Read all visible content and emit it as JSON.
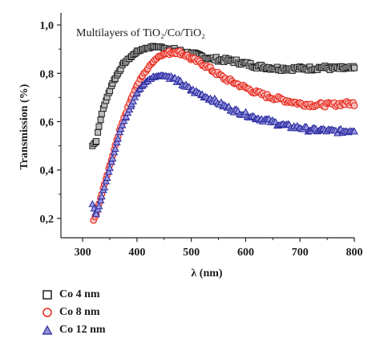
{
  "chart_data": {
    "type": "scatter",
    "annotation": "Multilayers of TiO₂/Co/TiO₂",
    "xlabel": "λ (nm)",
    "ylabel": "Transmission (%)",
    "xlim": [
      260,
      800
    ],
    "ylim": [
      0.12,
      1.05
    ],
    "x_ticks": [
      300,
      400,
      500,
      600,
      700,
      800
    ],
    "y_ticks": [
      0.2,
      0.4,
      0.6,
      0.8,
      1.0
    ],
    "y_tick_labels": [
      "0,2",
      "0,4",
      "0,6",
      "0,8",
      "1,0"
    ],
    "grid": false,
    "legend_position": "bottom-left",
    "series": [
      {
        "name": "Co 4 nm",
        "marker": "square",
        "color": "#222222",
        "x": [
          318,
          325,
          330,
          335,
          340,
          345,
          350,
          355,
          360,
          365,
          370,
          375,
          380,
          390,
          400,
          410,
          420,
          430,
          440,
          450,
          460,
          470,
          480,
          490,
          500,
          520,
          540,
          560,
          580,
          600,
          620,
          640,
          660,
          680,
          700,
          720,
          740,
          760,
          780,
          800
        ],
        "y": [
          0.5,
          0.52,
          0.58,
          0.63,
          0.67,
          0.7,
          0.73,
          0.76,
          0.78,
          0.8,
          0.82,
          0.84,
          0.85,
          0.87,
          0.89,
          0.9,
          0.905,
          0.91,
          0.91,
          0.905,
          0.9,
          0.895,
          0.89,
          0.885,
          0.88,
          0.87,
          0.86,
          0.855,
          0.85,
          0.84,
          0.83,
          0.825,
          0.82,
          0.82,
          0.82,
          0.82,
          0.825,
          0.82,
          0.82,
          0.82
        ]
      },
      {
        "name": "Co 8 nm",
        "marker": "circle",
        "color": "#e8261a",
        "x": [
          320,
          325,
          330,
          335,
          340,
          345,
          350,
          355,
          360,
          365,
          370,
          380,
          390,
          400,
          410,
          420,
          430,
          440,
          450,
          460,
          470,
          480,
          490,
          500,
          520,
          540,
          560,
          580,
          600,
          620,
          640,
          660,
          680,
          700,
          720,
          740,
          760,
          780,
          800
        ],
        "y": [
          0.19,
          0.22,
          0.26,
          0.3,
          0.34,
          0.38,
          0.42,
          0.46,
          0.5,
          0.54,
          0.58,
          0.64,
          0.7,
          0.75,
          0.79,
          0.82,
          0.85,
          0.87,
          0.88,
          0.885,
          0.89,
          0.885,
          0.875,
          0.86,
          0.84,
          0.81,
          0.78,
          0.76,
          0.74,
          0.72,
          0.705,
          0.695,
          0.685,
          0.675,
          0.67,
          0.67,
          0.67,
          0.675,
          0.675
        ]
      },
      {
        "name": "Co 12 nm",
        "marker": "triangle",
        "color": "#2b2ba0",
        "x": [
          318,
          325,
          330,
          335,
          340,
          345,
          350,
          355,
          360,
          365,
          370,
          380,
          390,
          400,
          410,
          420,
          430,
          440,
          450,
          460,
          470,
          480,
          490,
          500,
          520,
          540,
          560,
          580,
          600,
          620,
          640,
          660,
          680,
          700,
          720,
          740,
          760,
          780,
          800
        ],
        "y": [
          0.26,
          0.22,
          0.25,
          0.29,
          0.33,
          0.37,
          0.41,
          0.45,
          0.49,
          0.53,
          0.57,
          0.62,
          0.67,
          0.72,
          0.75,
          0.77,
          0.785,
          0.79,
          0.79,
          0.785,
          0.775,
          0.76,
          0.745,
          0.73,
          0.71,
          0.69,
          0.665,
          0.645,
          0.63,
          0.615,
          0.605,
          0.59,
          0.58,
          0.575,
          0.565,
          0.565,
          0.56,
          0.56,
          0.565
        ]
      }
    ]
  }
}
